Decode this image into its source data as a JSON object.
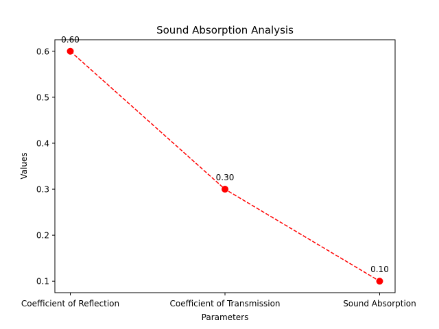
{
  "chart_data": {
    "type": "line",
    "title": "Sound Absorption Analysis",
    "xlabel": "Parameters",
    "ylabel": "Values",
    "categories": [
      "Coefficient of Reflection",
      "Coefficient of Transmission",
      "Sound Absorption"
    ],
    "series": [
      {
        "values": [
          0.6,
          0.3,
          0.1
        ],
        "data_labels": [
          "0.60",
          "0.30",
          "0.10"
        ],
        "color": "#ff0000",
        "line_style": "dashed",
        "marker": "circle"
      }
    ],
    "ylim": [
      0.075,
      0.625
    ],
    "yticks": [
      0.1,
      0.2,
      0.3,
      0.4,
      0.5,
      0.6
    ],
    "ytick_labels": [
      "0.1",
      "0.2",
      "0.3",
      "0.4",
      "0.5",
      "0.6"
    ],
    "grid": false,
    "legend": "none"
  }
}
